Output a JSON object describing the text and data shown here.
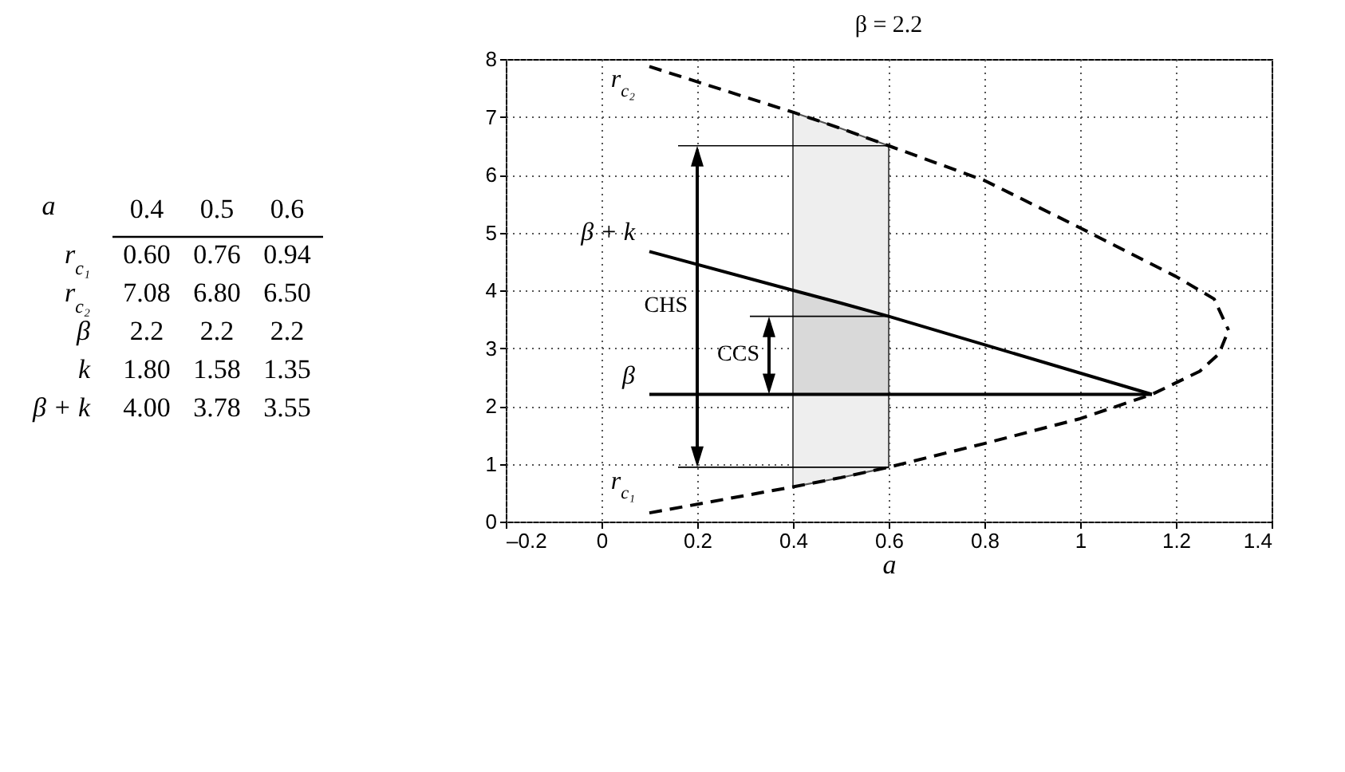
{
  "chart_data": [
    {
      "type": "heatmap",
      "xlabel": "a",
      "categories": [
        "0.4",
        "0.5",
        "0.6"
      ],
      "y_categories": [
        "r$_{c₁}$",
        "r$_{c₂}$",
        "β",
        "k",
        "β + k"
      ],
      "cells": [
        [
          0.6,
          0.76,
          0.94
        ],
        [
          7.08,
          6.8,
          6.5
        ],
        [
          2.2,
          2.2,
          2.2
        ],
        [
          1.8,
          1.58,
          1.35
        ],
        [
          4.0,
          3.78,
          3.55
        ]
      ],
      "cell_labels": [
        [
          "0.60",
          "0.76",
          "0.94"
        ],
        [
          "7.08",
          "6.80",
          "6.50"
        ],
        [
          "2.2",
          "2.2",
          "2.2"
        ],
        [
          "1.80",
          "1.58",
          "1.35"
        ],
        [
          "4.00",
          "3.78",
          "3.55"
        ]
      ]
    },
    {
      "type": "line",
      "title": "β = 2.2",
      "xlabel": "a",
      "xlim": [
        -0.2,
        1.4
      ],
      "xticks": [
        {
          "value": -0.2,
          "label": "–0.2"
        },
        0,
        0.2,
        0.4,
        0.6,
        0.8,
        1,
        1.2,
        1.4
      ],
      "ylim": [
        0,
        8
      ],
      "yticks": [
        0,
        1,
        2,
        3,
        4,
        5,
        6,
        7,
        8
      ],
      "grid": true,
      "series": [
        {
          "name": "r$_{c₂}$",
          "color": "#000000",
          "line_style": "dashed",
          "x": [
            0.1,
            0.4,
            0.5,
            0.6,
            0.8,
            1.0,
            1.2,
            1.28,
            1.31
          ],
          "values": [
            7.87,
            7.08,
            6.8,
            6.5,
            5.9,
            5.08,
            4.24,
            3.85,
            3.31
          ]
        },
        {
          "name": "r$_{c₁}$",
          "color": "#000000",
          "line_style": "dashed",
          "x": [
            0.1,
            0.4,
            0.5,
            0.6,
            0.8,
            1.0,
            1.15,
            1.25,
            1.29,
            1.31
          ],
          "values": [
            0.15,
            0.6,
            0.76,
            0.94,
            1.35,
            1.78,
            2.2,
            2.6,
            2.9,
            3.31
          ]
        },
        {
          "name": "β + k",
          "color": "#000000",
          "line_style": "solid",
          "x": [
            0.1,
            0.4,
            0.5,
            0.6,
            1.15
          ],
          "values": [
            4.67,
            4.0,
            3.78,
            3.55,
            2.2
          ]
        },
        {
          "name": "β",
          "color": "#000000",
          "line_style": "solid",
          "x": [
            0.1,
            0.4,
            0.5,
            0.6,
            1.15
          ],
          "values": [
            2.2,
            2.2,
            2.2,
            2.2,
            2.2
          ]
        },
        {
          "type": "area",
          "color": "#eeeeee",
          "x": [
            0.4,
            0.5,
            0.6
          ],
          "values": [
            7.08,
            6.8,
            6.5
          ]
        },
        {
          "type": "area",
          "color": "#d9d9d9",
          "x": [
            0.4,
            0.5,
            0.6
          ],
          "values": [
            4.0,
            3.78,
            3.55
          ]
        }
      ],
      "annotations": [
        "CHS",
        {
          "text": "CCS",
          "x": 0.6,
          "y": 3.55
        }
      ]
    }
  ]
}
